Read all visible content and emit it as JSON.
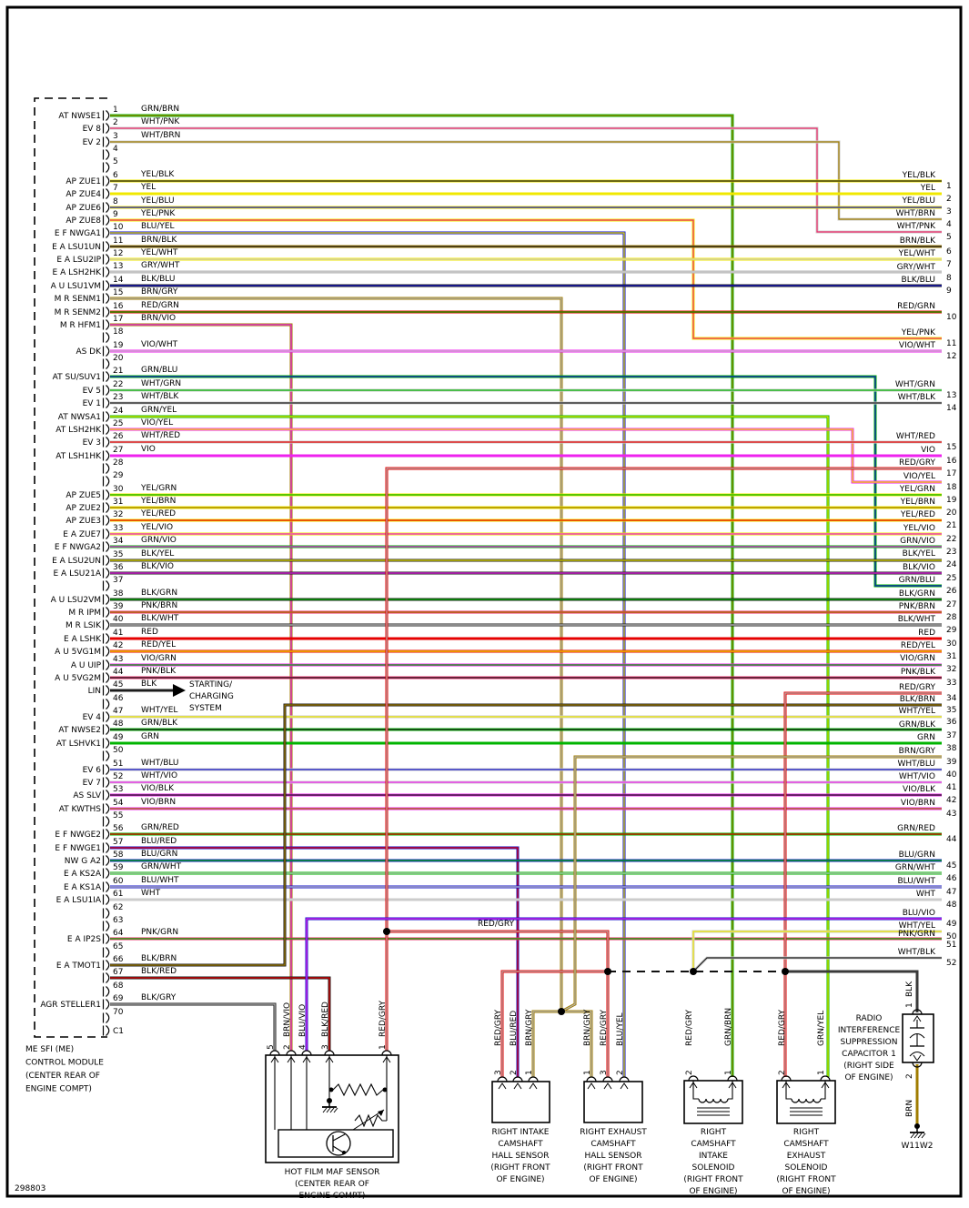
{
  "doc_number": "298803",
  "module": {
    "caption": [
      "ME SFI (ME)",
      "CONTROL MODULE",
      "(CENTER REAR OF",
      "ENGINE COMPT)"
    ],
    "c1_label": "C1",
    "pins": [
      {
        "n": 1,
        "signal": "AT NWSE1",
        "color": "GRN/BRN"
      },
      {
        "n": 2,
        "signal": "EV 8",
        "color": "WHT/PNK"
      },
      {
        "n": 3,
        "signal": "EV 2",
        "color": "WHT/BRN"
      },
      {
        "n": 4,
        "signal": "",
        "color": ""
      },
      {
        "n": 5,
        "signal": "",
        "color": ""
      },
      {
        "n": 6,
        "signal": "AP ZUE1",
        "color": "YEL/BLK"
      },
      {
        "n": 7,
        "signal": "AP ZUE4",
        "color": "YEL"
      },
      {
        "n": 8,
        "signal": "AP ZUE6",
        "color": "YEL/BLU"
      },
      {
        "n": 9,
        "signal": "AP ZUE8",
        "color": "YEL/PNK"
      },
      {
        "n": 10,
        "signal": "E F NWGA1",
        "color": "BLU/YEL"
      },
      {
        "n": 11,
        "signal": "E A LSU1UN",
        "color": "BRN/BLK"
      },
      {
        "n": 12,
        "signal": "E A LSU2IP",
        "color": "YEL/WHT"
      },
      {
        "n": 13,
        "signal": "E A LSH2HK",
        "color": "GRY/WHT"
      },
      {
        "n": 14,
        "signal": "A U LSU1VM",
        "color": "BLK/BLU"
      },
      {
        "n": 15,
        "signal": "M R SENM1",
        "color": "BRN/GRY"
      },
      {
        "n": 16,
        "signal": "M R SENM2",
        "color": "RED/GRN"
      },
      {
        "n": 17,
        "signal": "M R HFM1",
        "color": "BRN/VIO"
      },
      {
        "n": 18,
        "signal": "",
        "color": ""
      },
      {
        "n": 19,
        "signal": "AS DK",
        "color": "VIO/WHT"
      },
      {
        "n": 20,
        "signal": "",
        "color": ""
      },
      {
        "n": 21,
        "signal": "AT SU/SUV1",
        "color": "GRN/BLU"
      },
      {
        "n": 22,
        "signal": "EV 5",
        "color": "WHT/GRN"
      },
      {
        "n": 23,
        "signal": "EV 1",
        "color": "WHT/BLK"
      },
      {
        "n": 24,
        "signal": "AT NWSA1",
        "color": "GRN/YEL"
      },
      {
        "n": 25,
        "signal": "AT LSH2HK",
        "color": "VIO/YEL"
      },
      {
        "n": 26,
        "signal": "EV 3",
        "color": "WHT/RED"
      },
      {
        "n": 27,
        "signal": "AT LSH1HK",
        "color": "VIO"
      },
      {
        "n": 28,
        "signal": "",
        "color": ""
      },
      {
        "n": 29,
        "signal": "",
        "color": ""
      },
      {
        "n": 30,
        "signal": "AP ZUE5",
        "color": "YEL/GRN"
      },
      {
        "n": 31,
        "signal": "AP ZUE2",
        "color": "YEL/BRN"
      },
      {
        "n": 32,
        "signal": "AP ZUE3",
        "color": "YEL/RED"
      },
      {
        "n": 33,
        "signal": "E A ZUE7",
        "color": "YEL/VIO"
      },
      {
        "n": 34,
        "signal": "E F NWGA2",
        "color": "GRN/VIO"
      },
      {
        "n": 35,
        "signal": "E A LSU2UN",
        "color": "BLK/YEL"
      },
      {
        "n": 36,
        "signal": "E A LSU21A",
        "color": "BLK/VIO"
      },
      {
        "n": 37,
        "signal": "",
        "color": ""
      },
      {
        "n": 38,
        "signal": "A U LSU2VM",
        "color": "BLK/GRN"
      },
      {
        "n": 39,
        "signal": "M R IPM",
        "color": "PNK/BRN"
      },
      {
        "n": 40,
        "signal": "M R LSIK",
        "color": "BLK/WHT"
      },
      {
        "n": 41,
        "signal": "E A LSHK",
        "color": "RED"
      },
      {
        "n": 42,
        "signal": "A U 5VG1M",
        "color": "RED/YEL"
      },
      {
        "n": 43,
        "signal": "A U UIP",
        "color": "VIO/GRN"
      },
      {
        "n": 44,
        "signal": "A U 5VG2M",
        "color": "PNK/BLK"
      },
      {
        "n": 45,
        "signal": "LIN",
        "color": "BLK"
      },
      {
        "n": 46,
        "signal": "",
        "color": ""
      },
      {
        "n": 47,
        "signal": "EV 4",
        "color": "WHT/YEL"
      },
      {
        "n": 48,
        "signal": "AT NWSE2",
        "color": "GRN/BLK"
      },
      {
        "n": 49,
        "signal": "AT LSHVK1",
        "color": "GRN"
      },
      {
        "n": 50,
        "signal": "",
        "color": ""
      },
      {
        "n": 51,
        "signal": "EV 6",
        "color": "WHT/BLU"
      },
      {
        "n": 52,
        "signal": "EV 7",
        "color": "WHT/VIO"
      },
      {
        "n": 53,
        "signal": "AS SLV",
        "color": "VIO/BLK"
      },
      {
        "n": 54,
        "signal": "AT KWTHS",
        "color": "VIO/BRN"
      },
      {
        "n": 55,
        "signal": "",
        "color": ""
      },
      {
        "n": 56,
        "signal": "E F NWGE2",
        "color": "GRN/RED"
      },
      {
        "n": 57,
        "signal": "E F NWGE1",
        "color": "BLU/RED"
      },
      {
        "n": 58,
        "signal": "NW G A2",
        "color": "BLU/GRN"
      },
      {
        "n": 59,
        "signal": "E A KS2A",
        "color": "GRN/WHT"
      },
      {
        "n": 60,
        "signal": "E A KS1A",
        "color": "BLU/WHT"
      },
      {
        "n": 61,
        "signal": "E A LSU1IA",
        "color": "WHT"
      },
      {
        "n": 62,
        "signal": "",
        "color": ""
      },
      {
        "n": 63,
        "signal": "",
        "color": ""
      },
      {
        "n": 64,
        "signal": "E A IP2S",
        "color": "PNK/GRN"
      },
      {
        "n": 65,
        "signal": "",
        "color": ""
      },
      {
        "n": 66,
        "signal": "E A TMOT1",
        "color": "BLK/BRN"
      },
      {
        "n": 67,
        "signal": "",
        "color": "BLK/RED"
      },
      {
        "n": 68,
        "signal": "",
        "color": ""
      },
      {
        "n": 69,
        "signal": "AGR STELLER1",
        "color": "BLK/GRY"
      },
      {
        "n": 70,
        "signal": "",
        "color": ""
      }
    ]
  },
  "right_pins": [
    {
      "n": 1,
      "color": "YEL/BLK"
    },
    {
      "n": 2,
      "color": "YEL"
    },
    {
      "n": 3,
      "color": "YEL/BLU"
    },
    {
      "n": 4,
      "color": "WHT/BRN"
    },
    {
      "n": 5,
      "color": "WHT/PNK"
    },
    {
      "n": 6,
      "color": "BRN/BLK"
    },
    {
      "n": 7,
      "color": "YEL/WHT"
    },
    {
      "n": 8,
      "color": "GRY/WHT"
    },
    {
      "n": 9,
      "color": "BLK/BLU"
    },
    {
      "n": 10,
      "color": "RED/GRN"
    },
    {
      "n": 11,
      "color": "YEL/PNK"
    },
    {
      "n": 12,
      "color": "VIO/WHT"
    },
    {
      "n": 13,
      "color": "WHT/GRN"
    },
    {
      "n": 14,
      "color": "WHT/BLK"
    },
    {
      "n": 15,
      "color": "WHT/RED"
    },
    {
      "n": 16,
      "color": "VIO"
    },
    {
      "n": 17,
      "color": "RED/GRY"
    },
    {
      "n": 18,
      "color": "VIO/YEL"
    },
    {
      "n": 19,
      "color": "YEL/GRN"
    },
    {
      "n": 20,
      "color": "YEL/BRN"
    },
    {
      "n": 21,
      "color": "YEL/RED"
    },
    {
      "n": 22,
      "color": "YEL/VIO"
    },
    {
      "n": 23,
      "color": "GRN/VIO"
    },
    {
      "n": 24,
      "color": "BLK/YEL"
    },
    {
      "n": 25,
      "color": "BLK/VIO"
    },
    {
      "n": 26,
      "color": "GRN/BLU"
    },
    {
      "n": 27,
      "color": "BLK/GRN"
    },
    {
      "n": 28,
      "color": "PNK/BRN"
    },
    {
      "n": 29,
      "color": "BLK/WHT"
    },
    {
      "n": 30,
      "color": "RED"
    },
    {
      "n": 31,
      "color": "RED/YEL"
    },
    {
      "n": 32,
      "color": "VIO/GRN"
    },
    {
      "n": 33,
      "color": "PNK/BLK"
    },
    {
      "n": 34,
      "color": "RED/GRY"
    },
    {
      "n": 35,
      "color": "BLK/BRN"
    },
    {
      "n": 36,
      "color": "WHT/YEL"
    },
    {
      "n": 37,
      "color": "GRN/BLK"
    },
    {
      "n": 38,
      "color": "GRN"
    },
    {
      "n": 39,
      "color": "BRN/GRY"
    },
    {
      "n": 40,
      "color": "WHT/BLU"
    },
    {
      "n": 41,
      "color": "WHT/VIO"
    },
    {
      "n": 42,
      "color": "VIO/BLK"
    },
    {
      "n": 43,
      "color": "VIO/BRN"
    },
    {
      "n": 44,
      "color": "GRN/RED"
    },
    {
      "n": 45,
      "color": "BLU/GRN"
    },
    {
      "n": 46,
      "color": "GRN/WHT"
    },
    {
      "n": 47,
      "color": "BLU/WHT"
    },
    {
      "n": 48,
      "color": "WHT"
    },
    {
      "n": 49,
      "color": "BLU/VIO"
    },
    {
      "n": 50,
      "color": "WHT/YEL"
    },
    {
      "n": 51,
      "color": "PNK/GRN"
    },
    {
      "n": 52,
      "color": "WHT/BLK"
    }
  ],
  "notes": {
    "red_gry_label": "RED/GRY",
    "starting": [
      "STARTING/",
      "CHARGING",
      "SYSTEM"
    ],
    "ground_label": "W11W2"
  },
  "components": {
    "maf": {
      "caption": [
        "HOT FILM MAF SENSOR",
        "(CENTER REAR OF",
        "ENGINE COMPT)"
      ],
      "pins": [
        {
          "n": "5",
          "color": ""
        },
        {
          "n": "2",
          "color": "BRN/VIO"
        },
        {
          "n": "4",
          "color": "BLU/VIO"
        },
        {
          "n": "3",
          "color": "BLK/RED"
        },
        {
          "n": "1",
          "color": "RED/GRY"
        }
      ]
    },
    "intake_hall": {
      "caption": [
        "RIGHT INTAKE",
        "CAMSHAFT",
        "HALL SENSOR",
        "(RIGHT FRONT",
        "OF ENGINE)"
      ],
      "pins": [
        {
          "n": "3",
          "color": "RED/GRY"
        },
        {
          "n": "2",
          "color": "BLU/RED"
        },
        {
          "n": "1",
          "color": "BRN/GRY"
        }
      ]
    },
    "exhaust_hall": {
      "caption": [
        "RIGHT EXHAUST",
        "CAMSHAFT",
        "HALL SENSOR",
        "(RIGHT FRONT",
        "OF ENGINE)"
      ],
      "pins": [
        {
          "n": "1",
          "color": "BRN/GRY"
        },
        {
          "n": "3",
          "color": "RED/GRY"
        },
        {
          "n": "2",
          "color": "BLU/YEL"
        }
      ]
    },
    "intake_sol": {
      "caption": [
        "RIGHT",
        "CAMSHAFT",
        "INTAKE",
        "SOLENOID",
        "(RIGHT FRONT",
        "OF ENGINE)"
      ],
      "pins": [
        {
          "n": "2",
          "color": "RED/GRY"
        },
        {
          "n": "1",
          "color": "GRN/BRN"
        }
      ]
    },
    "exhaust_sol": {
      "caption": [
        "RIGHT",
        "CAMSHAFT",
        "EXHAUST",
        "SOLENOID",
        "(RIGHT FRONT",
        "OF ENGINE)"
      ],
      "pins": [
        {
          "n": "2",
          "color": "RED/GRY"
        },
        {
          "n": "1",
          "color": "GRN/YEL"
        }
      ]
    },
    "capacitor": {
      "caption": [
        "RADIO",
        "INTERFERENCE",
        "SUPPRESSION",
        "CAPACITOR 1",
        "(RIGHT SIDE",
        "OF ENGINE)"
      ],
      "pins": [
        {
          "n": "1",
          "color": "BLK"
        },
        {
          "n": "2",
          "color": "BRN"
        }
      ]
    }
  },
  "colors": {
    "GRN": "#00b400",
    "BRN": "#a07c00",
    "YEL": "#f0e800",
    "BLU": "#1414c8",
    "RED": "#e60000",
    "VIO": "#ee22ee",
    "WHT": "#cccccc",
    "GRY": "#b4b4b4",
    "PNK": "#ee2c6c",
    "BLK": "#1c1c1c"
  }
}
